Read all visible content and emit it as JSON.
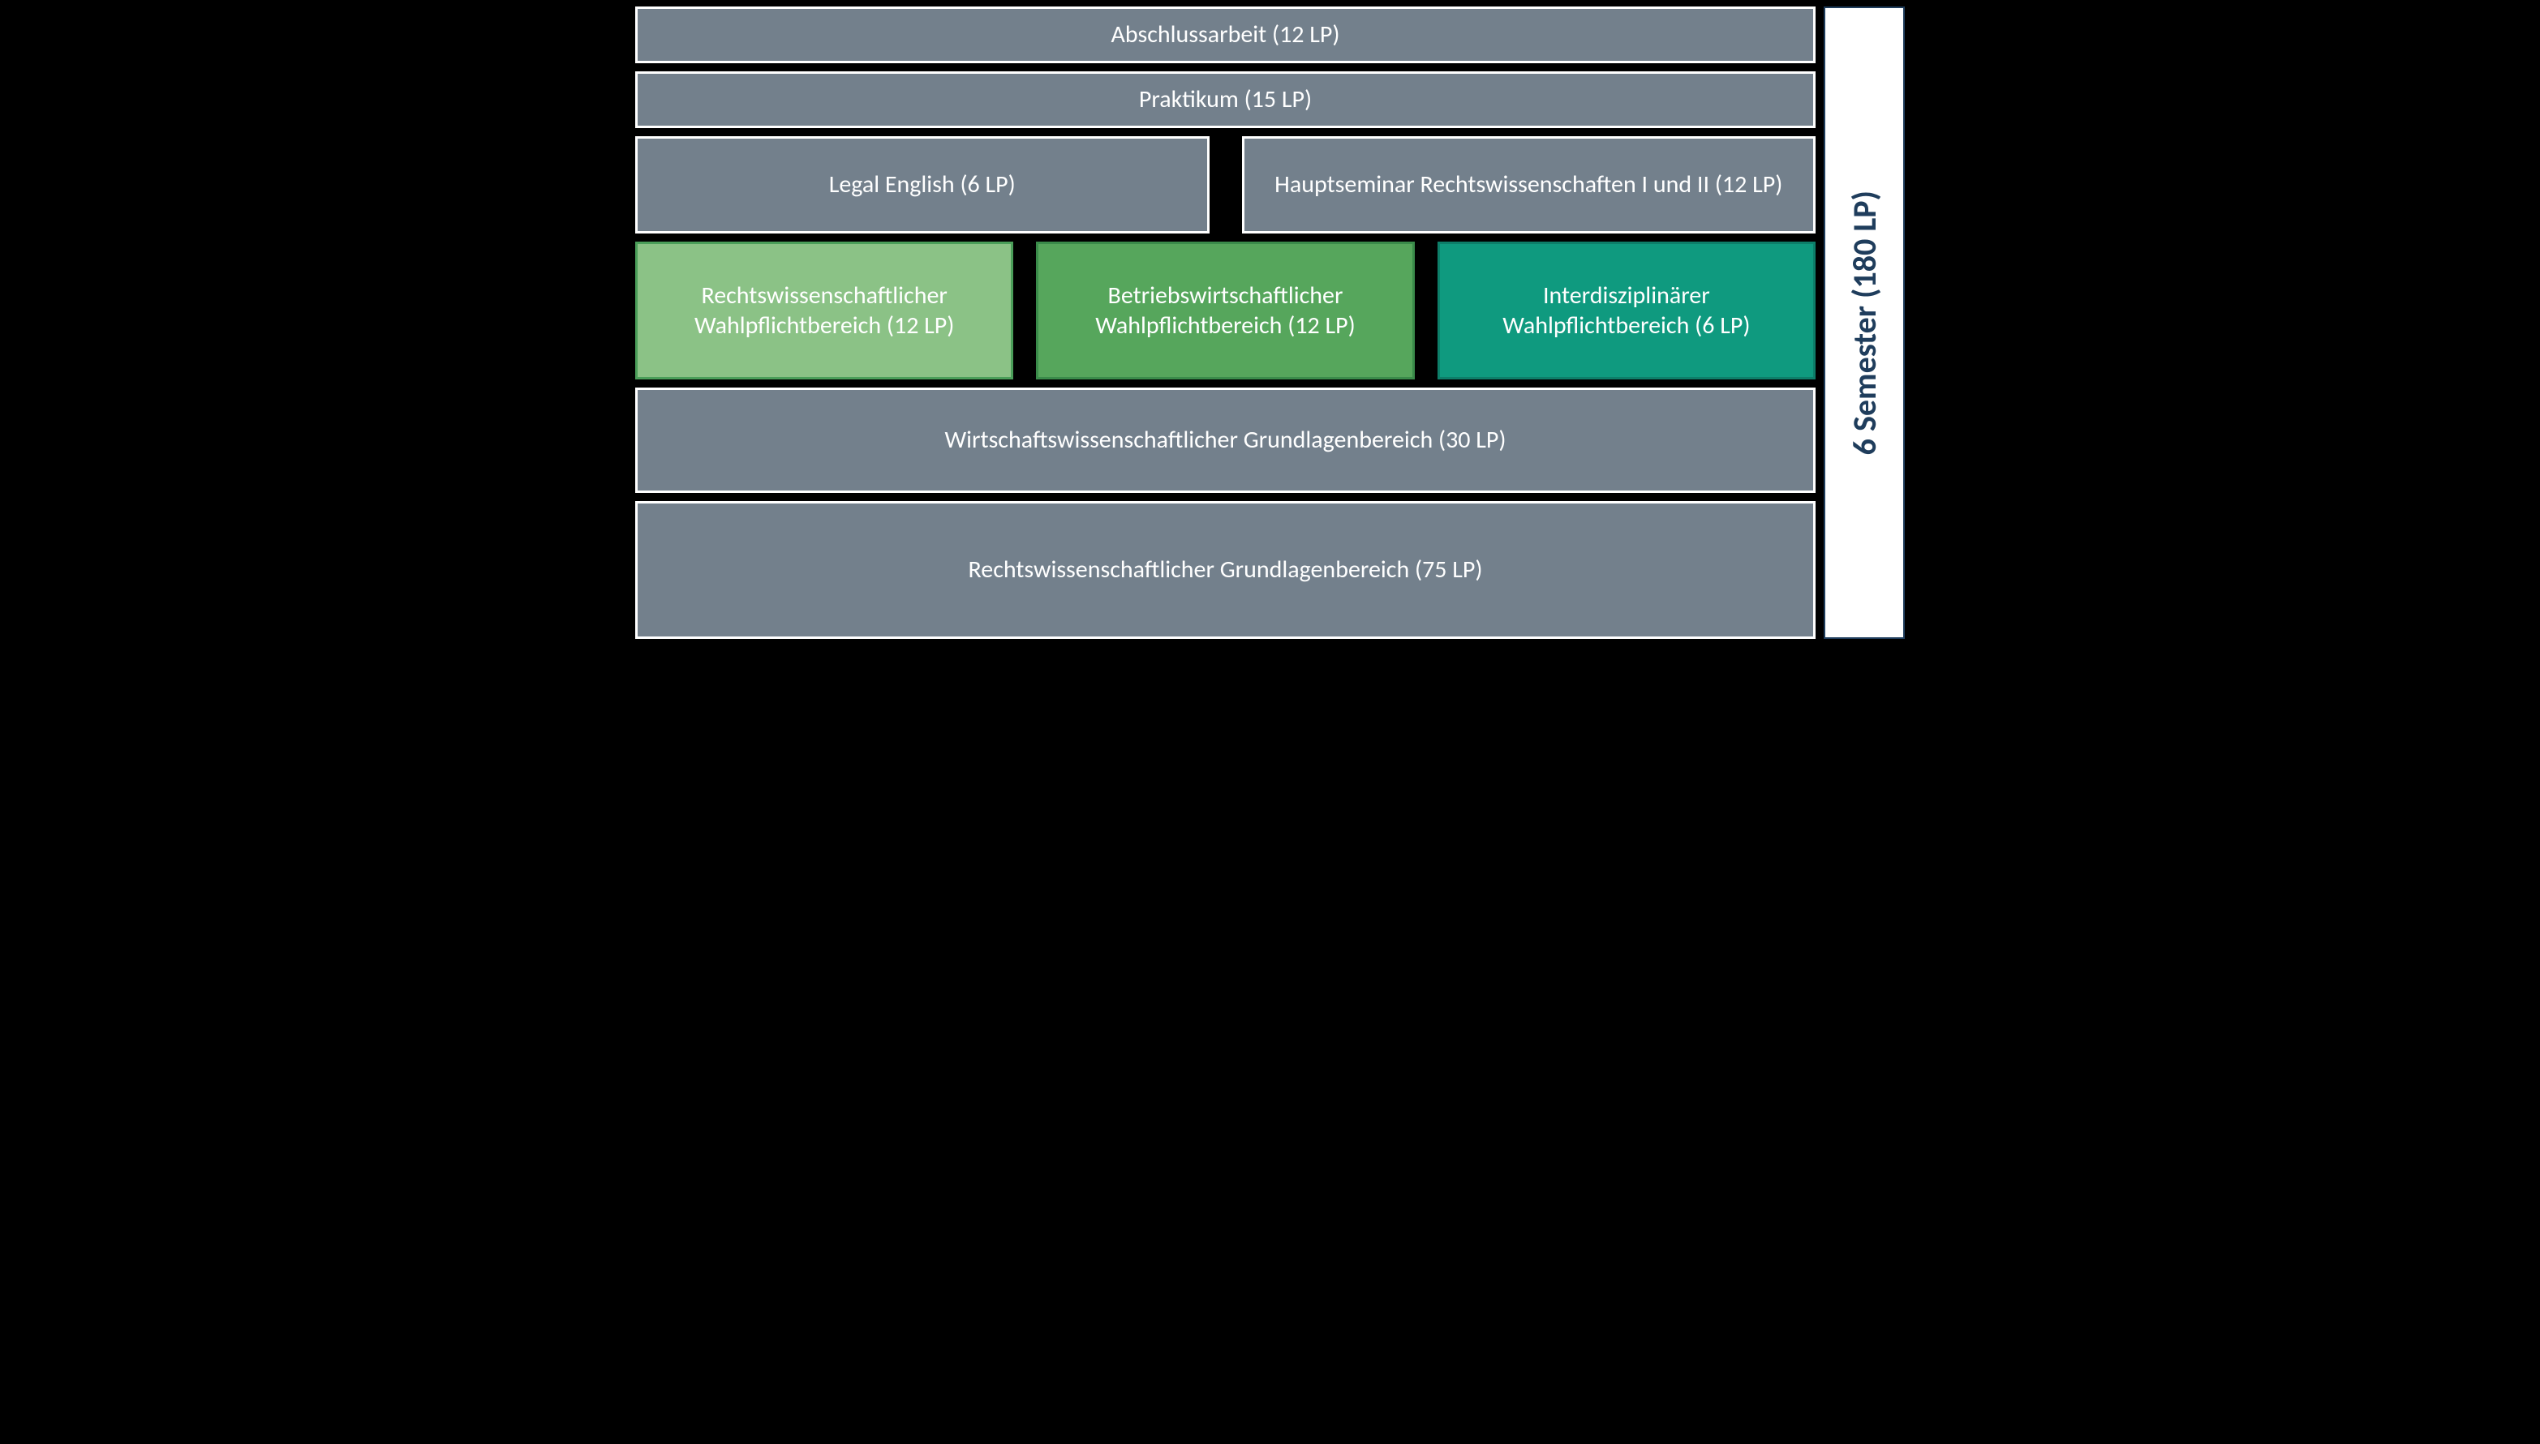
{
  "diagram": {
    "type": "stacked-block-diagram",
    "background_color": "#000000",
    "default_box": {
      "fill": "#73808c",
      "border": "#ffffff",
      "text_color": "#ffffff",
      "font_size_pt": 22
    },
    "rows": [
      {
        "kind": "single",
        "label": "Abschlussarbeit (12 LP)",
        "height": 70
      },
      {
        "kind": "single",
        "label": "Praktikum (15 LP)",
        "height": 70
      },
      {
        "kind": "pair",
        "left": {
          "label": "Legal English (6 LP)"
        },
        "right": {
          "label": "Hauptseminar Rechtswissenschaften I und II (12 LP)"
        },
        "height": 120
      },
      {
        "kind": "triple",
        "height": 170,
        "items": [
          {
            "label": "Rechtswissenschaftlicher Wahlpflichtbereich (12 LP)",
            "fill": "#8bc286",
            "border": "#4a9e59"
          },
          {
            "label": "Betriebswirtschaftlicher Wahlpflichtbereich (12 LP)",
            "fill": "#56a65c",
            "border": "#3a8b4a"
          },
          {
            "label": "Interdisziplinärer Wahlpflichtbereich (6 LP)",
            "fill": "#0f9a7f",
            "border": "#0d7e69"
          }
        ]
      },
      {
        "kind": "single",
        "label": "Wirtschaftswissenschaftlicher Grundlagenbereich (30 LP)",
        "height": 130
      },
      {
        "kind": "single",
        "label": "Rechtswissenschaftlicher Grundlagenbereich (75 LP)",
        "height": 160
      }
    ],
    "sidebar": {
      "label": "6 Semester (180 LP)",
      "text_color": "#1f3d5c",
      "background": "#ffffff",
      "border": "#1f3d5c",
      "font_size_pt": 30,
      "orientation": "vertical"
    }
  }
}
